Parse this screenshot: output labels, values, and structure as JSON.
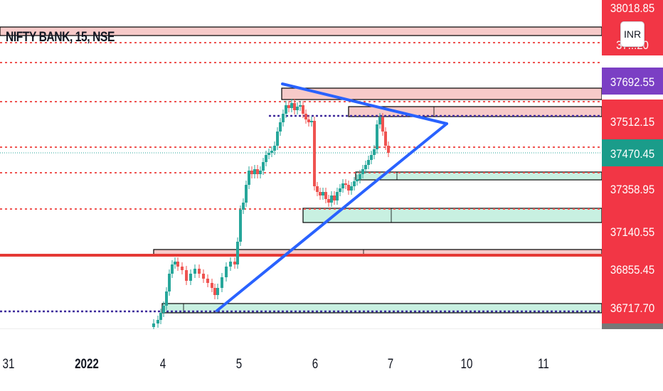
{
  "header": {
    "title": "NIFTY BANK, 15, NSE",
    "currency": "INR"
  },
  "colors": {
    "bull": "#26a69a",
    "bear": "#ef5350",
    "trend": "#2962ff",
    "supply": "#f7cac9",
    "demand": "#c8f0e1",
    "axis_red": "#f23645",
    "axis_purple": "#7b3fc4",
    "axis_teal": "#1a9c8a"
  },
  "chart_data": {
    "type": "candlestick",
    "title": "NIFTY BANK, 15, NSE",
    "y_axis_labels": [
      {
        "value": "38018.85",
        "style": "red"
      },
      {
        "value": "37...20",
        "style": "red"
      },
      {
        "value": "37692.55",
        "style": "purple"
      },
      {
        "value": "37512.15",
        "style": "red"
      },
      {
        "value": "37470.45",
        "style": "teal"
      },
      {
        "value": "37358.95",
        "style": "red"
      },
      {
        "value": "37140.55",
        "style": "red"
      },
      {
        "value": "36855.45",
        "style": "red"
      },
      {
        "value": "36717.70",
        "style": "red"
      }
    ],
    "x_tick_labels": [
      "31",
      "2022",
      "4",
      "5",
      "6",
      "7",
      "10",
      "11"
    ],
    "last_price": 37470.45,
    "levels_dotted_red": [
      37860,
      37750,
      37580,
      37470,
      37370,
      37210
    ],
    "level_solid_red": 36890,
    "levels_dotted_purple": [
      37512.15,
      36717.7
    ],
    "supply_zones": [
      [
        37860,
        37940
      ],
      [
        37600,
        37650
      ],
      [
        37530,
        37560
      ],
      [
        36900,
        36930
      ]
    ],
    "demand_zones": [
      [
        37350,
        37390
      ],
      [
        37130,
        37200
      ],
      [
        36720,
        36760
      ]
    ],
    "trendlines": [
      {
        "from": [
          "5 (late)",
          37640
        ],
        "to": [
          "10 (early)",
          37480
        ]
      },
      {
        "from": [
          "4 (late)",
          36720
        ],
        "to": [
          "10 (early)",
          37480
        ]
      }
    ]
  }
}
